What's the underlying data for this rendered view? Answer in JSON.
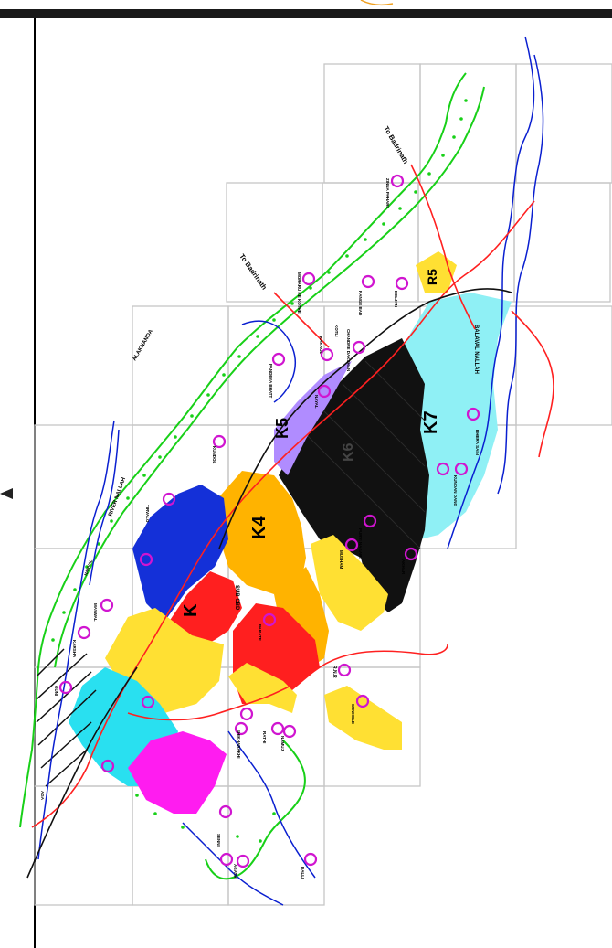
{
  "map": {
    "orientation": "rotated 90° (north arrow points left)",
    "zones": [
      {
        "id": "K",
        "label": "K",
        "color": "#ff1f1f"
      },
      {
        "id": "K4",
        "label": "K4",
        "color": "#ffb300"
      },
      {
        "id": "K5",
        "label": "K5",
        "color": "#b08cff"
      },
      {
        "id": "K6",
        "label": "K6",
        "color": "#111111"
      },
      {
        "id": "K7",
        "label": "K7",
        "color": "#8ff0f5"
      },
      {
        "id": "R5",
        "label": "R5",
        "color": "#ffe033"
      },
      {
        "id": "blue",
        "label": "",
        "color": "#1430d8"
      },
      {
        "id": "magenta",
        "label": "",
        "color": "#ff1cf0"
      },
      {
        "id": "cyan-west",
        "label": "",
        "color": "#29e0f0"
      }
    ],
    "colors": {
      "green_belt": "#18d018",
      "river": "#0a1fd0",
      "road": "#ff2020",
      "grid": "#bdbdbd",
      "marker": "#d015d0",
      "rail": "#111111"
    },
    "text_labels": {
      "to_badrinath_upper": "To Badrinath",
      "to_badrinath_mid": "To Badrinath",
      "alaknanda_river": "ALAKNANDA",
      "nallah_left": "RIVER NALLAH",
      "nallah_right": "BALAVAL NALLAH",
      "sub_cbd": "SUB CBD",
      "hdta": "R.N.R"
    },
    "village_labels": [
      "ZINNA PAHARI",
      "MORARU KE KOTHE",
      "RANGE BAD",
      "BELJAN",
      "CHANDRE DAKSHAN",
      "KOTLI",
      "PANDEYA BHATT",
      "KAKROL",
      "NAYAL",
      "BHERA SAIN",
      "KUNDOL",
      "KUNDAN DANG",
      "TIRVALO",
      "PURVI NAGARI",
      "MUSHAM",
      "AKHAR",
      "PARATE",
      "SHIKHARAKHI",
      "RATHI",
      "SUNHOLE",
      "NAMUJ",
      "MAYWAL",
      "SENNI",
      "AGATH",
      "DALLI",
      "KARSHA",
      "NARVAL",
      "GUNI",
      "AGA"
    ]
  }
}
